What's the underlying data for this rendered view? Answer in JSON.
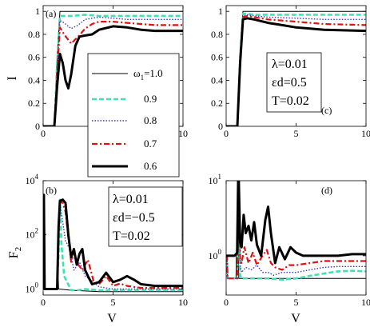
{
  "legend": {
    "entries": [
      {
        "label": "ω1=1.0",
        "text": "ω",
        "sub": "1",
        "tail": "=1.0"
      },
      {
        "label": "0.9"
      },
      {
        "label": "0.8"
      },
      {
        "label": "0.7"
      },
      {
        "label": "0.6"
      }
    ]
  },
  "colors": {
    "w1_0": "#000000",
    "w0_9": "#40e0b0",
    "w0_8": "#3a3ad0",
    "w0_7": "#e01010",
    "w0_6": "#000000"
  },
  "chart_data": [
    {
      "type": "line",
      "panel_label": "(a)",
      "xlabel": "",
      "ylabel": "I",
      "xlim": [
        0,
        10
      ],
      "ylim": [
        0,
        1.05
      ],
      "xticks": [
        "0",
        "5",
        "10"
      ],
      "yticks": [
        "0",
        "0.2",
        "0.4",
        "0.6",
        "0.8",
        "1"
      ],
      "series": [
        {
          "name": "ω1=1.0",
          "x": [
            0,
            0.8,
            1.0,
            1.2,
            2,
            4,
            6,
            8,
            10
          ],
          "y": [
            0,
            0,
            0.6,
            1.0,
            1.0,
            1.0,
            1.0,
            1.0,
            1.0
          ]
        },
        {
          "name": "0.9",
          "x": [
            0,
            0.8,
            1.0,
            1.2,
            1.5,
            2,
            3,
            4,
            6,
            8,
            10
          ],
          "y": [
            0,
            0,
            0.55,
            0.96,
            0.96,
            0.96,
            0.97,
            0.96,
            0.96,
            0.96,
            0.96
          ]
        },
        {
          "name": "0.8",
          "x": [
            0,
            0.8,
            1.0,
            1.2,
            1.5,
            2,
            2.5,
            3,
            4,
            5,
            6,
            8,
            10
          ],
          "y": [
            0,
            0,
            0.5,
            0.92,
            0.9,
            0.85,
            0.88,
            0.93,
            0.95,
            0.94,
            0.93,
            0.93,
            0.93
          ]
        },
        {
          "name": "0.7",
          "x": [
            0,
            0.8,
            1.0,
            1.2,
            1.5,
            2,
            2.5,
            3,
            3.5,
            4,
            5,
            6,
            8,
            10
          ],
          "y": [
            0,
            0,
            0.45,
            0.86,
            0.8,
            0.72,
            0.78,
            0.85,
            0.89,
            0.91,
            0.91,
            0.9,
            0.88,
            0.88
          ]
        },
        {
          "name": "0.6",
          "x": [
            0,
            0.8,
            1.0,
            1.2,
            1.4,
            1.6,
            1.8,
            2.0,
            2.3,
            2.6,
            3,
            3.5,
            4,
            5,
            6,
            7,
            8,
            10
          ],
          "y": [
            0,
            0,
            0.35,
            0.63,
            0.55,
            0.4,
            0.33,
            0.45,
            0.7,
            0.78,
            0.79,
            0.8,
            0.84,
            0.87,
            0.86,
            0.84,
            0.83,
            0.83
          ]
        }
      ]
    },
    {
      "type": "line",
      "panel_label": "(b)",
      "xlabel": "V",
      "ylabel": "F2",
      "ylabel_main": "F",
      "ylabel_sub": "2",
      "annotation": [
        "λ=0.01",
        "εd=−0.5",
        "T=0.02"
      ],
      "yscale": "log",
      "xlim": [
        0,
        10
      ],
      "ylim": [
        0.6,
        10000
      ],
      "xticks": [
        "0",
        "5",
        "10"
      ],
      "yticks": [
        {
          "base": "10",
          "exp": "0"
        },
        {
          "base": "10",
          "exp": "2"
        },
        {
          "base": "10",
          "exp": "4"
        }
      ],
      "series": [
        {
          "name": "ω1=1.0",
          "x": [
            0,
            0.05,
            0.1,
            0.9,
            1.0,
            1.05,
            1.1,
            2,
            4,
            6,
            8,
            10
          ],
          "y": [
            1,
            3000,
            1,
            1,
            1.2,
            10,
            1,
            0.9,
            0.8,
            0.8,
            0.8,
            0.8
          ]
        },
        {
          "name": "0.9",
          "x": [
            0,
            0.05,
            0.1,
            1.0,
            1.1,
            1.2,
            1.3,
            1.5,
            2,
            2.5,
            3,
            4,
            6,
            8,
            10
          ],
          "y": [
            1,
            3000,
            1,
            1,
            20,
            2000,
            50,
            3,
            0.9,
            0.9,
            1,
            0.9,
            0.9,
            0.9,
            0.9
          ]
        },
        {
          "name": "0.8",
          "x": [
            0,
            0.05,
            0.1,
            1.0,
            1.1,
            1.2,
            1.4,
            1.6,
            1.9,
            2.2,
            2.6,
            3,
            3.5,
            4,
            5,
            6,
            7,
            8,
            10
          ],
          "y": [
            1,
            3000,
            1,
            1,
            50,
            1500,
            300,
            60,
            30,
            5,
            10,
            3,
            2,
            1.2,
            1,
            1,
            1,
            1,
            1
          ]
        },
        {
          "name": "0.7",
          "x": [
            0,
            0.05,
            0.1,
            1.0,
            1.1,
            1.2,
            1.4,
            1.6,
            1.8,
            2.0,
            2.2,
            2.5,
            2.8,
            3.2,
            3.6,
            4,
            4.5,
            5,
            5.5,
            6,
            7,
            8,
            10
          ],
          "y": [
            1,
            3000,
            1,
            1,
            100,
            1800,
            1500,
            700,
            80,
            10,
            20,
            8,
            5,
            12,
            2,
            1.5,
            3,
            1.3,
            1.6,
            1.3,
            1.1,
            1.1,
            1.1
          ]
        },
        {
          "name": "0.6",
          "x": [
            0,
            0.05,
            0.1,
            1.0,
            1.1,
            1.2,
            1.4,
            1.6,
            1.8,
            2.0,
            2.2,
            2.4,
            2.6,
            2.8,
            3.0,
            3.2,
            3.5,
            4.0,
            4.5,
            5.0,
            5.5,
            6.0,
            6.5,
            7.0,
            7.5,
            8.0,
            8.5,
            10
          ],
          "y": [
            1,
            3000,
            1,
            1,
            200,
            1800,
            2000,
            1500,
            100,
            15,
            30,
            8,
            20,
            30,
            5,
            3,
            1.5,
            1.8,
            4,
            1.8,
            2.2,
            3,
            2.2,
            1.5,
            1.4,
            1.3,
            1.3,
            1.3
          ]
        }
      ]
    },
    {
      "type": "line",
      "panel_label": "(c)",
      "xlabel": "",
      "ylabel": "",
      "annotation": [
        "λ=0.01",
        "εd=0.5",
        "T=0.02"
      ],
      "xlim": [
        0,
        10
      ],
      "ylim": [
        0,
        1.05
      ],
      "xticks": [
        "0",
        "5",
        "10"
      ],
      "yticks": [
        "0",
        "0.2",
        "0.4",
        "0.6",
        "0.8",
        "1"
      ],
      "series": [
        {
          "name": "ω1=1.0",
          "x": [
            0,
            0.8,
            1.0,
            1.2,
            2,
            4,
            6,
            8,
            10
          ],
          "y": [
            0,
            0,
            0.6,
            1.0,
            1.0,
            1.0,
            1.0,
            1.0,
            1.0
          ]
        },
        {
          "name": "0.9",
          "x": [
            0,
            0.8,
            1.0,
            1.2,
            1.5,
            2,
            3,
            5,
            8,
            10
          ],
          "y": [
            0,
            0,
            0.6,
            0.98,
            0.98,
            0.97,
            0.97,
            0.97,
            0.97,
            0.97
          ]
        },
        {
          "name": "0.8",
          "x": [
            0,
            0.8,
            1.0,
            1.2,
            1.5,
            2,
            3,
            5,
            7,
            10
          ],
          "y": [
            0,
            0,
            0.6,
            0.96,
            0.97,
            0.96,
            0.95,
            0.94,
            0.93,
            0.93
          ]
        },
        {
          "name": "0.7",
          "x": [
            0,
            0.8,
            1.0,
            1.2,
            1.5,
            2,
            3,
            5,
            7,
            10
          ],
          "y": [
            0,
            0,
            0.6,
            0.95,
            0.96,
            0.95,
            0.93,
            0.91,
            0.89,
            0.88
          ]
        },
        {
          "name": "0.6",
          "x": [
            0,
            0.8,
            1.0,
            1.2,
            1.5,
            2,
            3,
            4,
            5,
            7,
            10
          ],
          "y": [
            0,
            0,
            0.55,
            0.93,
            0.94,
            0.93,
            0.9,
            0.88,
            0.86,
            0.84,
            0.83
          ]
        }
      ]
    },
    {
      "type": "line",
      "panel_label": "(d)",
      "xlabel": "V",
      "ylabel": "",
      "yscale": "log",
      "xlim": [
        0,
        10
      ],
      "ylim": [
        0.3,
        10
      ],
      "xticks": [
        "0",
        "5",
        "10"
      ],
      "yticks": [
        {
          "base": "10",
          "exp": "0"
        },
        {
          "base": "10",
          "exp": "1"
        }
      ],
      "series": [
        {
          "name": "ω1=1.0",
          "x": [
            0,
            0.05,
            0.1,
            0.6,
            0.7,
            0.8,
            0.9,
            1.0,
            2,
            4,
            6,
            8,
            10
          ],
          "y": [
            1,
            1,
            0.5,
            0.5,
            0.5,
            10,
            0.5,
            0.5,
            0.5,
            0.5,
            0.5,
            0.5,
            0.5
          ]
        },
        {
          "name": "0.9",
          "x": [
            0,
            0.05,
            0.1,
            0.6,
            0.8,
            0.9,
            1.0,
            1.1,
            1.5,
            2,
            3,
            4,
            5,
            6,
            7,
            8,
            9,
            10
          ],
          "y": [
            1,
            1,
            0.5,
            0.5,
            0.5,
            10,
            0.55,
            0.5,
            0.5,
            0.5,
            0.5,
            0.48,
            0.5,
            0.54,
            0.58,
            0.62,
            0.63,
            0.62
          ]
        },
        {
          "name": "0.8",
          "x": [
            0,
            0.05,
            0.1,
            0.6,
            0.8,
            0.9,
            1.0,
            1.1,
            1.4,
            1.8,
            2.2,
            2.6,
            3,
            3.4,
            4,
            5,
            6,
            7,
            8,
            10
          ],
          "y": [
            1,
            1,
            0.5,
            0.5,
            0.5,
            10,
            0.7,
            0.6,
            0.7,
            0.65,
            0.75,
            0.6,
            0.6,
            0.55,
            0.6,
            0.6,
            0.65,
            0.7,
            0.72,
            0.72
          ]
        },
        {
          "name": "0.7",
          "x": [
            0,
            0.05,
            0.1,
            0.6,
            0.8,
            0.9,
            1.0,
            1.1,
            1.3,
            1.6,
            1.9,
            2.2,
            2.6,
            2.9,
            3.2,
            3.5,
            4,
            4.5,
            5,
            6,
            7,
            8,
            9,
            10
          ],
          "y": [
            1,
            1,
            0.5,
            0.5,
            0.5,
            10,
            0.9,
            0.8,
            1.3,
            0.8,
            1.1,
            0.75,
            1.0,
            1.2,
            0.8,
            0.7,
            0.65,
            0.75,
            0.75,
            0.8,
            0.85,
            0.85,
            0.85,
            0.85
          ]
        },
        {
          "name": "0.6",
          "x": [
            0,
            0.05,
            0.1,
            0.6,
            0.8,
            0.9,
            1.0,
            1.1,
            1.25,
            1.4,
            1.6,
            1.8,
            2.0,
            2.2,
            2.5,
            2.8,
            3.0,
            3.2,
            3.5,
            3.8,
            4.2,
            4.6,
            5,
            5.5,
            6,
            7,
            8,
            9,
            10
          ],
          "y": [
            1,
            1,
            1,
            1,
            1.1,
            10,
            1.5,
            1.3,
            3.5,
            2.0,
            2.5,
            1.6,
            2.8,
            1.4,
            1.0,
            3.0,
            4.5,
            2.0,
            0.8,
            1.3,
            0.9,
            1.3,
            1.1,
            1.0,
            1.0,
            1.0,
            1.0,
            1.05,
            1.05
          ]
        }
      ]
    }
  ]
}
